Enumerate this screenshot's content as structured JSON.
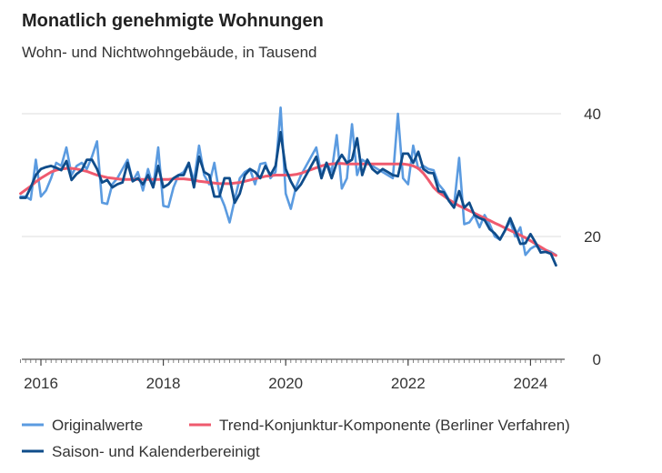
{
  "chart_data": {
    "type": "line",
    "title": "Monatlich genehmigte Wohnungen",
    "subtitle": "Wohn- und Nichtwohngebäude, in Tausend",
    "xlabel": "",
    "ylabel": "",
    "ylim": [
      0,
      40
    ],
    "yticks": [
      "0",
      "20",
      "40"
    ],
    "xticks": [
      "2016",
      "2018",
      "2020",
      "2022",
      "2024"
    ],
    "grid": true,
    "legend_position": "bottom",
    "x": [
      "2015-09",
      "2015-10",
      "2015-11",
      "2015-12",
      "2016-01",
      "2016-02",
      "2016-03",
      "2016-04",
      "2016-05",
      "2016-06",
      "2016-07",
      "2016-08",
      "2016-09",
      "2016-10",
      "2016-11",
      "2016-12",
      "2017-01",
      "2017-02",
      "2017-03",
      "2017-04",
      "2017-05",
      "2017-06",
      "2017-07",
      "2017-08",
      "2017-09",
      "2017-10",
      "2017-11",
      "2017-12",
      "2018-01",
      "2018-02",
      "2018-03",
      "2018-04",
      "2018-05",
      "2018-06",
      "2018-07",
      "2018-08",
      "2018-09",
      "2018-10",
      "2018-11",
      "2018-12",
      "2019-01",
      "2019-02",
      "2019-03",
      "2019-04",
      "2019-05",
      "2019-06",
      "2019-07",
      "2019-08",
      "2019-09",
      "2019-10",
      "2019-11",
      "2019-12",
      "2020-01",
      "2020-02",
      "2020-03",
      "2020-04",
      "2020-05",
      "2020-06",
      "2020-07",
      "2020-08",
      "2020-09",
      "2020-10",
      "2020-11",
      "2020-12",
      "2021-01",
      "2021-02",
      "2021-03",
      "2021-04",
      "2021-05",
      "2021-06",
      "2021-07",
      "2021-08",
      "2021-09",
      "2021-10",
      "2021-11",
      "2021-12",
      "2022-01",
      "2022-02",
      "2022-03",
      "2022-04",
      "2022-05",
      "2022-06",
      "2022-07",
      "2022-08",
      "2022-09",
      "2022-10",
      "2022-11",
      "2022-12",
      "2023-01",
      "2023-02",
      "2023-03",
      "2023-04",
      "2023-05",
      "2023-06",
      "2023-07",
      "2023-08",
      "2023-09",
      "2023-10",
      "2023-11",
      "2023-12",
      "2024-01",
      "2024-02",
      "2024-03",
      "2024-04",
      "2024-05",
      "2024-06"
    ],
    "series": [
      {
        "name": "Originalwerte",
        "color": "#5b9be0",
        "values": [
          26.5,
          26.5,
          26.0,
          32.5,
          26.5,
          27.5,
          29.5,
          32.0,
          31.5,
          34.5,
          30.0,
          31.5,
          32.0,
          31.0,
          33.0,
          35.5,
          25.5,
          25.3,
          28.5,
          29.5,
          31.0,
          32.5,
          29.0,
          30.5,
          27.5,
          31.0,
          28.0,
          34.5,
          25.0,
          24.8,
          28.0,
          30.0,
          30.5,
          32.0,
          29.0,
          34.8,
          30.0,
          28.5,
          32.0,
          27.0,
          25.0,
          22.3,
          26.0,
          29.5,
          30.5,
          31.0,
          28.5,
          31.8,
          32.0,
          29.5,
          30.5,
          41.0,
          27.0,
          24.5,
          28.0,
          30.0,
          31.5,
          33.0,
          34.5,
          30.0,
          32.0,
          30.5,
          36.5,
          27.8,
          29.5,
          38.3,
          30.0,
          32.5,
          32.0,
          31.5,
          31.0,
          30.5,
          30.0,
          29.5,
          40.0,
          29.5,
          28.5,
          34.8,
          31.0,
          31.5,
          31.0,
          30.8,
          28.5,
          27.5,
          26.0,
          25.0,
          32.8,
          22.0,
          22.3,
          23.5,
          21.5,
          23.5,
          22.0,
          20.0,
          19.5,
          21.0,
          22.5,
          20.0,
          21.5,
          17.0,
          18.0,
          18.5,
          18.0,
          17.8,
          17.5,
          17.0
        ]
      },
      {
        "name": "Trend-Konjunktur-Komponente (Berliner Verfahren)",
        "color": "#ef5a6e",
        "values": [
          27.0,
          27.6,
          28.2,
          28.9,
          29.5,
          30.0,
          30.5,
          30.8,
          31.0,
          31.1,
          31.1,
          31.0,
          30.8,
          30.6,
          30.3,
          30.0,
          29.8,
          29.6,
          29.5,
          29.4,
          29.3,
          29.3,
          29.3,
          29.3,
          29.3,
          29.3,
          29.3,
          29.3,
          29.3,
          29.3,
          29.4,
          29.4,
          29.4,
          29.3,
          29.2,
          29.0,
          28.9,
          28.8,
          28.7,
          28.6,
          28.6,
          28.6,
          28.7,
          28.8,
          29.0,
          29.2,
          29.4,
          29.6,
          29.8,
          29.9,
          30.0,
          30.0,
          30.0,
          30.0,
          30.1,
          30.3,
          30.6,
          30.9,
          31.2,
          31.5,
          31.7,
          31.8,
          31.9,
          31.9,
          31.8,
          31.8,
          31.8,
          31.8,
          31.8,
          31.8,
          31.8,
          31.8,
          31.8,
          31.8,
          31.8,
          31.8,
          31.7,
          31.5,
          31.1,
          30.3,
          29.2,
          28.0,
          27.2,
          26.6,
          26.0,
          25.5,
          25.0,
          24.6,
          24.2,
          23.8,
          23.4,
          23.0,
          22.6,
          22.2,
          21.8,
          21.4,
          21.0,
          20.6,
          20.2,
          19.8,
          19.3,
          18.8,
          18.3,
          17.8,
          17.3,
          16.9
        ]
      },
      {
        "name": "Saison- und Kalenderbereinigt",
        "color": "#0f4c8a",
        "values": [
          26.3,
          26.3,
          28.0,
          30.0,
          31.0,
          31.3,
          31.5,
          31.2,
          30.8,
          32.3,
          29.2,
          30.2,
          30.8,
          32.5,
          32.5,
          31.0,
          28.8,
          29.2,
          28.0,
          28.5,
          28.8,
          32.0,
          29.0,
          29.5,
          28.5,
          30.0,
          28.0,
          31.5,
          28.0,
          28.5,
          29.5,
          30.0,
          30.0,
          32.0,
          28.0,
          33.0,
          30.5,
          30.0,
          26.5,
          26.5,
          29.5,
          29.5,
          25.5,
          27.0,
          30.0,
          31.0,
          30.5,
          29.5,
          31.5,
          30.0,
          31.5,
          37.0,
          31.0,
          29.0,
          27.5,
          28.5,
          30.0,
          31.5,
          33.0,
          29.5,
          32.0,
          29.5,
          32.0,
          33.3,
          32.0,
          32.5,
          36.0,
          30.0,
          32.5,
          31.0,
          30.3,
          31.0,
          30.5,
          30.0,
          29.8,
          33.5,
          33.5,
          32.0,
          33.8,
          31.0,
          30.4,
          30.3,
          27.4,
          27.2,
          25.8,
          24.7,
          27.4,
          24.7,
          25.5,
          23.5,
          23.0,
          22.7,
          21.2,
          20.5,
          19.5,
          21.0,
          23.0,
          21.0,
          18.8,
          18.9,
          20.4,
          19.0,
          17.4,
          17.5,
          17.2,
          15.3
        ]
      }
    ]
  }
}
